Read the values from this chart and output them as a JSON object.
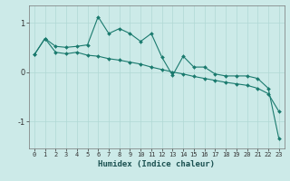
{
  "xlabel": "Humidex (Indice chaleur)",
  "ylabel": "",
  "bg_color": "#cceae8",
  "line_color": "#1a7a6e",
  "xlim": [
    -0.5,
    23.5
  ],
  "ylim": [
    -1.55,
    1.35
  ],
  "yticks": [
    -1,
    0,
    1
  ],
  "xticks": [
    0,
    1,
    2,
    3,
    4,
    5,
    6,
    7,
    8,
    9,
    10,
    11,
    12,
    13,
    14,
    15,
    16,
    17,
    18,
    19,
    20,
    21,
    22,
    23
  ],
  "series1_x": [
    0,
    1,
    2,
    3,
    4,
    5,
    6,
    7,
    8,
    9,
    10,
    11,
    12,
    13,
    14,
    15,
    16,
    17,
    18,
    19,
    20,
    21,
    22,
    23
  ],
  "series1_y": [
    0.35,
    0.68,
    0.52,
    0.5,
    0.52,
    0.55,
    1.12,
    0.78,
    0.88,
    0.78,
    0.62,
    0.78,
    0.3,
    -0.07,
    0.32,
    0.1,
    0.1,
    -0.04,
    -0.08,
    -0.08,
    -0.08,
    -0.13,
    -0.33,
    -1.35
  ],
  "series2_x": [
    0,
    1,
    2,
    3,
    4,
    5,
    6,
    7,
    8,
    9,
    10,
    11,
    12,
    13,
    14,
    15,
    16,
    17,
    18,
    19,
    20,
    21,
    22,
    23
  ],
  "series2_y": [
    0.35,
    0.68,
    0.4,
    0.37,
    0.4,
    0.34,
    0.32,
    0.27,
    0.24,
    0.2,
    0.16,
    0.1,
    0.05,
    0.0,
    -0.04,
    -0.09,
    -0.13,
    -0.17,
    -0.21,
    -0.24,
    -0.27,
    -0.33,
    -0.44,
    -0.8
  ],
  "marker": "D",
  "markersize": 2.0,
  "linewidth": 0.8,
  "grid_color": "#b0d8d4",
  "grid_linewidth": 0.5,
  "tick_fontsize": 5.0,
  "xlabel_fontsize": 6.5
}
